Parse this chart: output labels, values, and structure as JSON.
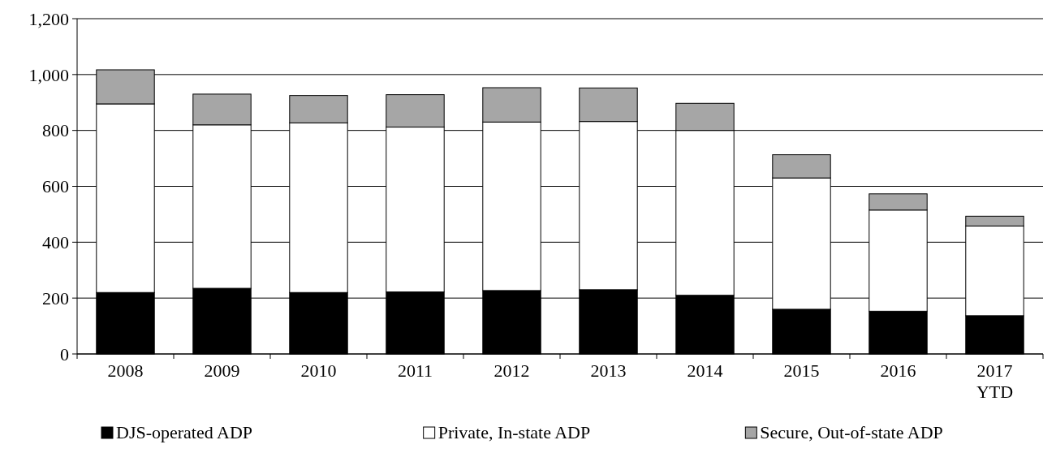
{
  "chart_data": {
    "type": "bar",
    "stacked": true,
    "categories": [
      "2008",
      "2009",
      "2010",
      "2011",
      "2012",
      "2013",
      "2014",
      "2015",
      "2016",
      "2017 YTD"
    ],
    "series": [
      {
        "name": "DJS-operated ADP",
        "color": "#000000",
        "values": [
          220,
          235,
          220,
          222,
          227,
          230,
          210,
          160,
          153,
          137
        ]
      },
      {
        "name": "Private, In-state ADP",
        "color": "#ffffff",
        "values": [
          675,
          585,
          607,
          590,
          603,
          602,
          590,
          470,
          362,
          321
        ]
      },
      {
        "name": "Secure, Out-of-state ADP",
        "color": "#a6a6a6",
        "values": [
          122,
          110,
          98,
          116,
          123,
          120,
          97,
          83,
          58,
          35
        ]
      }
    ],
    "ylim": [
      0,
      1200
    ],
    "yticks": [
      0,
      {
        "value": 200,
        "label": "200"
      },
      {
        "value": 400,
        "label": "400"
      },
      {
        "value": 600,
        "label": "600"
      },
      {
        "value": 800,
        "label": "800"
      },
      {
        "value": 1000,
        "label": "1,000"
      },
      {
        "value": 1200,
        "label": "1,200"
      }
    ],
    "grid": "y",
    "legend": "bottom"
  }
}
